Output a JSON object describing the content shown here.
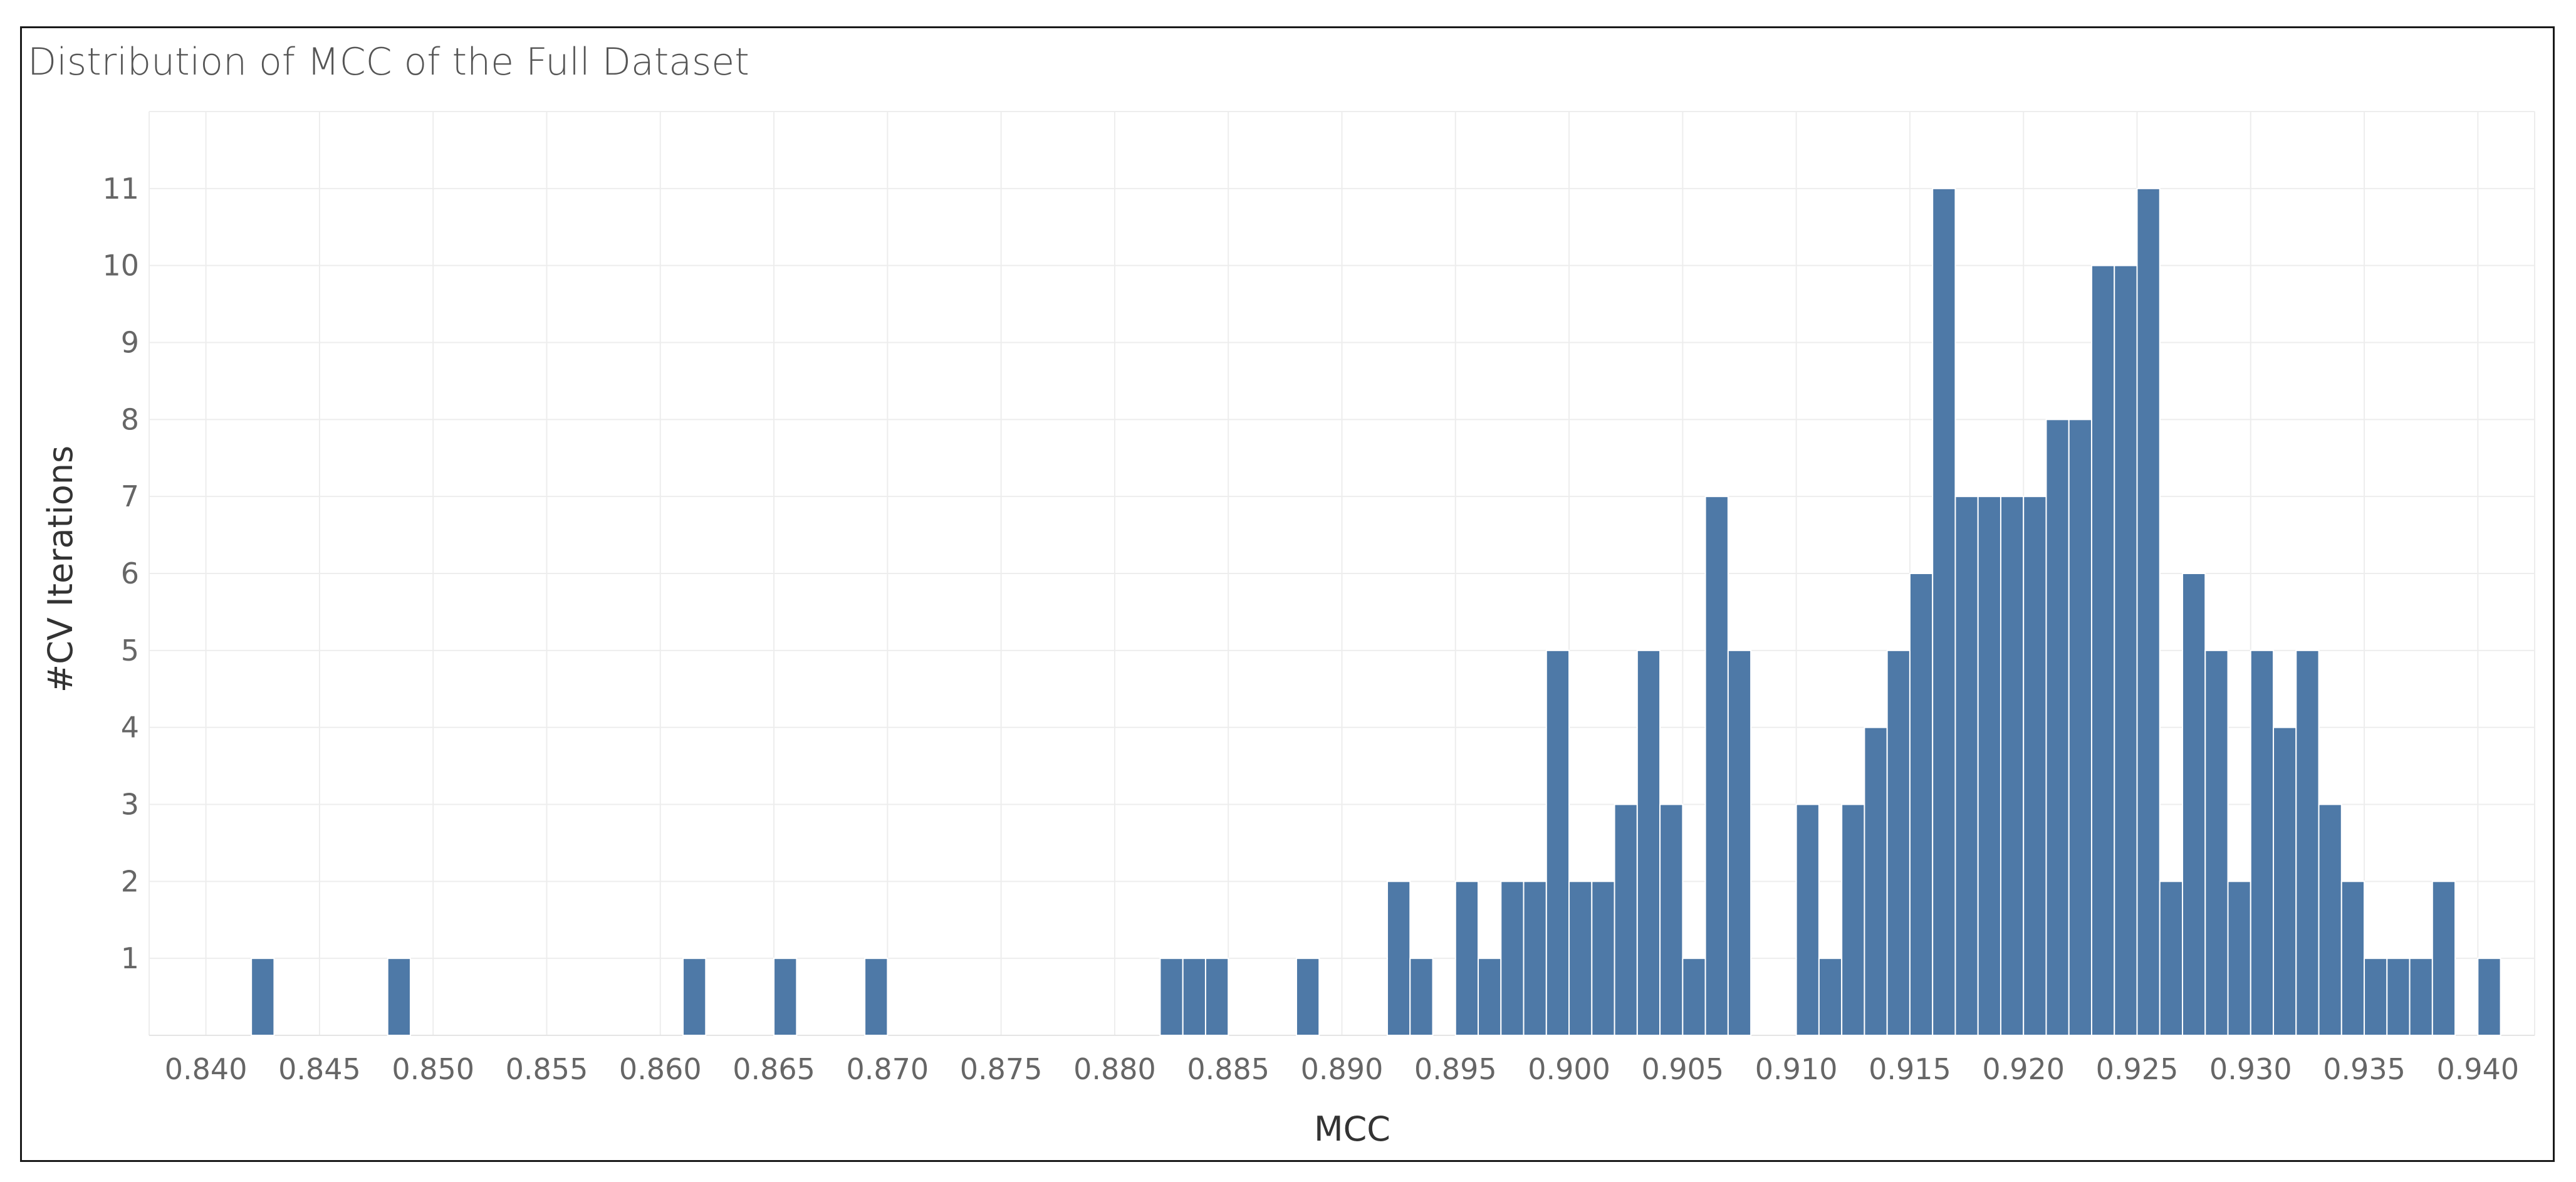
{
  "chart_data": {
    "type": "bar",
    "title": "Distribution of MCC of the Full Dataset",
    "xlabel": "MCC",
    "ylabel": "#CV Iterations",
    "xlim": [
      0.8375,
      0.9425
    ],
    "ylim": [
      0,
      12
    ],
    "bin_width": 0.001,
    "grid": true,
    "xticks": [
      "0.840",
      "0.845",
      "0.850",
      "0.855",
      "0.860",
      "0.865",
      "0.870",
      "0.875",
      "0.880",
      "0.885",
      "0.890",
      "0.895",
      "0.900",
      "0.905",
      "0.910",
      "0.915",
      "0.920",
      "0.925",
      "0.930",
      "0.935",
      "0.940"
    ],
    "yticks": [
      1,
      2,
      3,
      4,
      5,
      6,
      7,
      8,
      9,
      10,
      11
    ],
    "color": "#4e79a7",
    "bins": [
      0.842,
      0.848,
      0.861,
      0.865,
      0.869,
      0.882,
      0.883,
      0.884,
      0.888,
      0.892,
      0.893,
      0.895,
      0.896,
      0.897,
      0.898,
      0.899,
      0.9,
      0.901,
      0.902,
      0.903,
      0.904,
      0.905,
      0.906,
      0.907,
      0.91,
      0.911,
      0.912,
      0.913,
      0.914,
      0.915,
      0.916,
      0.917,
      0.918,
      0.919,
      0.92,
      0.921,
      0.922,
      0.923,
      0.924,
      0.925,
      0.926,
      0.927,
      0.928,
      0.929,
      0.93,
      0.931,
      0.932,
      0.933,
      0.934,
      0.935,
      0.936,
      0.937,
      0.938,
      0.94
    ],
    "values": [
      1,
      1,
      1,
      1,
      1,
      1,
      1,
      1,
      1,
      2,
      1,
      2,
      1,
      2,
      2,
      5,
      2,
      2,
      3,
      5,
      3,
      1,
      7,
      5,
      3,
      1,
      3,
      4,
      5,
      6,
      11,
      7,
      7,
      7,
      7,
      8,
      8,
      10,
      10,
      11,
      2,
      6,
      5,
      2,
      5,
      4,
      5,
      3,
      2,
      1,
      1,
      1,
      2,
      1
    ]
  }
}
